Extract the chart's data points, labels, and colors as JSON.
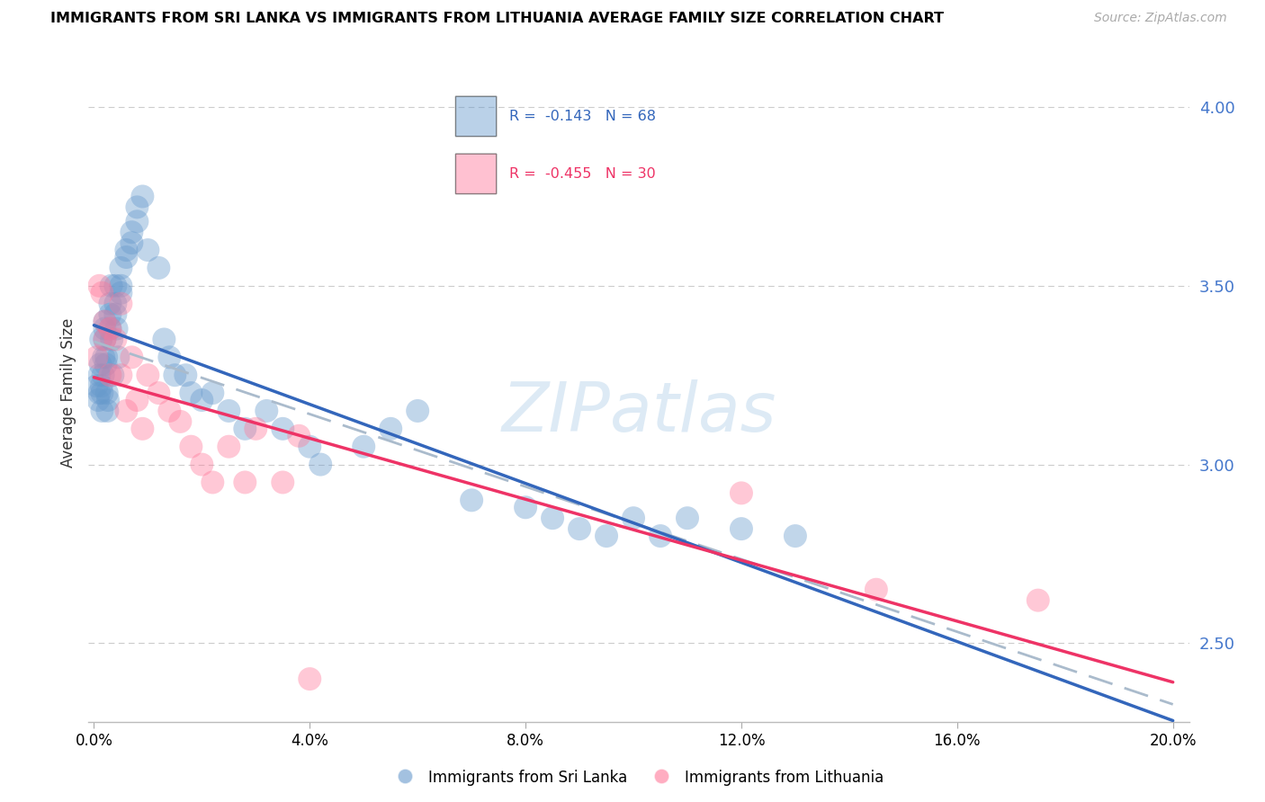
{
  "title": "IMMIGRANTS FROM SRI LANKA VS IMMIGRANTS FROM LITHUANIA AVERAGE FAMILY SIZE CORRELATION CHART",
  "source": "Source: ZipAtlas.com",
  "ylabel": "Average Family Size",
  "yticks": [
    2.5,
    3.0,
    3.5,
    4.0
  ],
  "xlim": [
    0.0,
    0.2
  ],
  "ylim": [
    2.28,
    4.12
  ],
  "sri_lanka_color": "#6699cc",
  "lithuania_color": "#ff7799",
  "sri_lanka_label": "Immigrants from Sri Lanka",
  "lithuania_label": "Immigrants from Lithuania",
  "legend_R_sri": "R =  -0.143",
  "legend_N_sri": "N = 68",
  "legend_R_lit": "R =  -0.455",
  "legend_N_lit": "N = 30",
  "sri_lanka_x": [
    0.0005,
    0.0008,
    0.001,
    0.001,
    0.0012,
    0.0013,
    0.0014,
    0.0015,
    0.0015,
    0.0017,
    0.0018,
    0.002,
    0.002,
    0.002,
    0.0022,
    0.0023,
    0.0024,
    0.0025,
    0.0026,
    0.003,
    0.003,
    0.003,
    0.0032,
    0.0033,
    0.0035,
    0.004,
    0.004,
    0.004,
    0.0042,
    0.0045,
    0.005,
    0.005,
    0.005,
    0.006,
    0.006,
    0.007,
    0.007,
    0.008,
    0.008,
    0.009,
    0.01,
    0.012,
    0.013,
    0.014,
    0.015,
    0.017,
    0.018,
    0.02,
    0.022,
    0.025,
    0.028,
    0.032,
    0.035,
    0.04,
    0.042,
    0.05,
    0.055,
    0.06,
    0.07,
    0.08,
    0.085,
    0.09,
    0.095,
    0.1,
    0.105,
    0.11,
    0.12,
    0.13
  ],
  "sri_lanka_y": [
    3.22,
    3.18,
    3.2,
    3.25,
    3.28,
    3.35,
    3.22,
    3.15,
    3.2,
    3.25,
    3.3,
    3.4,
    3.38,
    3.35,
    3.28,
    3.3,
    3.2,
    3.15,
    3.18,
    3.45,
    3.42,
    3.38,
    3.5,
    3.35,
    3.25,
    3.5,
    3.45,
    3.42,
    3.38,
    3.3,
    3.55,
    3.5,
    3.48,
    3.6,
    3.58,
    3.65,
    3.62,
    3.72,
    3.68,
    3.75,
    3.6,
    3.55,
    3.35,
    3.3,
    3.25,
    3.25,
    3.2,
    3.18,
    3.2,
    3.15,
    3.1,
    3.15,
    3.1,
    3.05,
    3.0,
    3.05,
    3.1,
    3.15,
    2.9,
    2.88,
    2.85,
    2.82,
    2.8,
    2.85,
    2.8,
    2.85,
    2.82,
    2.8
  ],
  "lithuania_x": [
    0.0005,
    0.001,
    0.0015,
    0.002,
    0.002,
    0.003,
    0.003,
    0.004,
    0.005,
    0.005,
    0.006,
    0.007,
    0.008,
    0.009,
    0.01,
    0.012,
    0.014,
    0.016,
    0.018,
    0.02,
    0.022,
    0.025,
    0.028,
    0.03,
    0.035,
    0.038,
    0.04,
    0.12,
    0.145,
    0.175
  ],
  "lithuania_y": [
    3.3,
    3.5,
    3.48,
    3.4,
    3.35,
    3.38,
    3.25,
    3.35,
    3.45,
    3.25,
    3.15,
    3.3,
    3.18,
    3.1,
    3.25,
    3.2,
    3.15,
    3.12,
    3.05,
    3.0,
    2.95,
    3.05,
    2.95,
    3.1,
    2.95,
    3.08,
    2.4,
    2.92,
    2.65,
    2.62
  ],
  "watermark": "ZIPatlas",
  "background_color": "#ffffff",
  "grid_color": "#cccccc"
}
